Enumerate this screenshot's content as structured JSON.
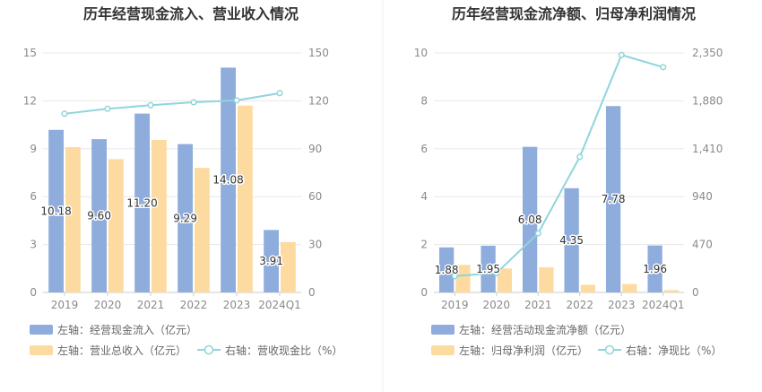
{
  "colors": {
    "bar_primary": "#8eacdc",
    "bar_secondary": "#fddba0",
    "line": "#8fd5dc",
    "grid": "#e8e8e8",
    "axis_text": "#8a8a8a",
    "divider": "#eeeeee"
  },
  "chart_data": [
    {
      "type": "bar",
      "title": "历年经营现金流入、营业收入情况",
      "categories": [
        "2019",
        "2020",
        "2021",
        "2022",
        "2023",
        "2024Q1"
      ],
      "left_axis": {
        "ylim": [
          0,
          15
        ],
        "ticks": [
          "0",
          "3",
          "6",
          "9",
          "12",
          "15"
        ]
      },
      "right_axis": {
        "ylim": [
          0,
          150
        ],
        "ticks": [
          "0",
          "30",
          "60",
          "90",
          "120",
          "150"
        ]
      },
      "series": [
        {
          "name": "左轴：经营现金流入（亿元）",
          "axis": "left",
          "kind": "bar",
          "values": [
            10.18,
            9.6,
            11.2,
            9.29,
            14.08,
            3.91
          ],
          "labels": [
            "10.18",
            "9.60",
            "11.20",
            "9.29",
            "14.08",
            "3.91"
          ]
        },
        {
          "name": "左轴：营业总收入（亿元）",
          "axis": "left",
          "kind": "bar",
          "values": [
            9.1,
            8.35,
            9.55,
            7.8,
            11.7,
            3.15
          ]
        },
        {
          "name": "右轴：营收现金比（%）",
          "axis": "right",
          "kind": "line",
          "values": [
            111.9,
            115.0,
            117.3,
            119.1,
            120.3,
            124.8
          ]
        }
      ],
      "legend_placement": "bottom",
      "grid": true
    },
    {
      "type": "bar",
      "title": "历年经营现金流净额、归母净利润情况",
      "categories": [
        "2019",
        "2020",
        "2021",
        "2022",
        "2023",
        "2024Q1"
      ],
      "left_axis": {
        "ylim": [
          0,
          10
        ],
        "ticks": [
          "0",
          "2",
          "4",
          "6",
          "8",
          "10"
        ]
      },
      "right_axis": {
        "ylim": [
          0,
          2350
        ],
        "ticks": [
          "0",
          "470",
          "940",
          "1,410",
          "1,880",
          "2,350"
        ]
      },
      "series": [
        {
          "name": "左轴：经营活动现金流净额（亿元）",
          "axis": "left",
          "kind": "bar",
          "values": [
            1.88,
            1.95,
            6.08,
            4.35,
            7.78,
            1.96
          ],
          "labels": [
            "1.88",
            "1.95",
            "6.08",
            "4.35",
            "7.78",
            "1.96"
          ]
        },
        {
          "name": "左轴：归母净利润（亿元）",
          "axis": "left",
          "kind": "bar",
          "values": [
            1.15,
            1.0,
            1.05,
            0.32,
            0.35,
            0.1
          ]
        },
        {
          "name": "右轴：净现比（%）",
          "axis": "right",
          "kind": "line",
          "values": [
            160,
            190,
            580,
            1330,
            2330,
            2210
          ]
        }
      ],
      "legend_placement": "bottom",
      "grid": true
    }
  ]
}
